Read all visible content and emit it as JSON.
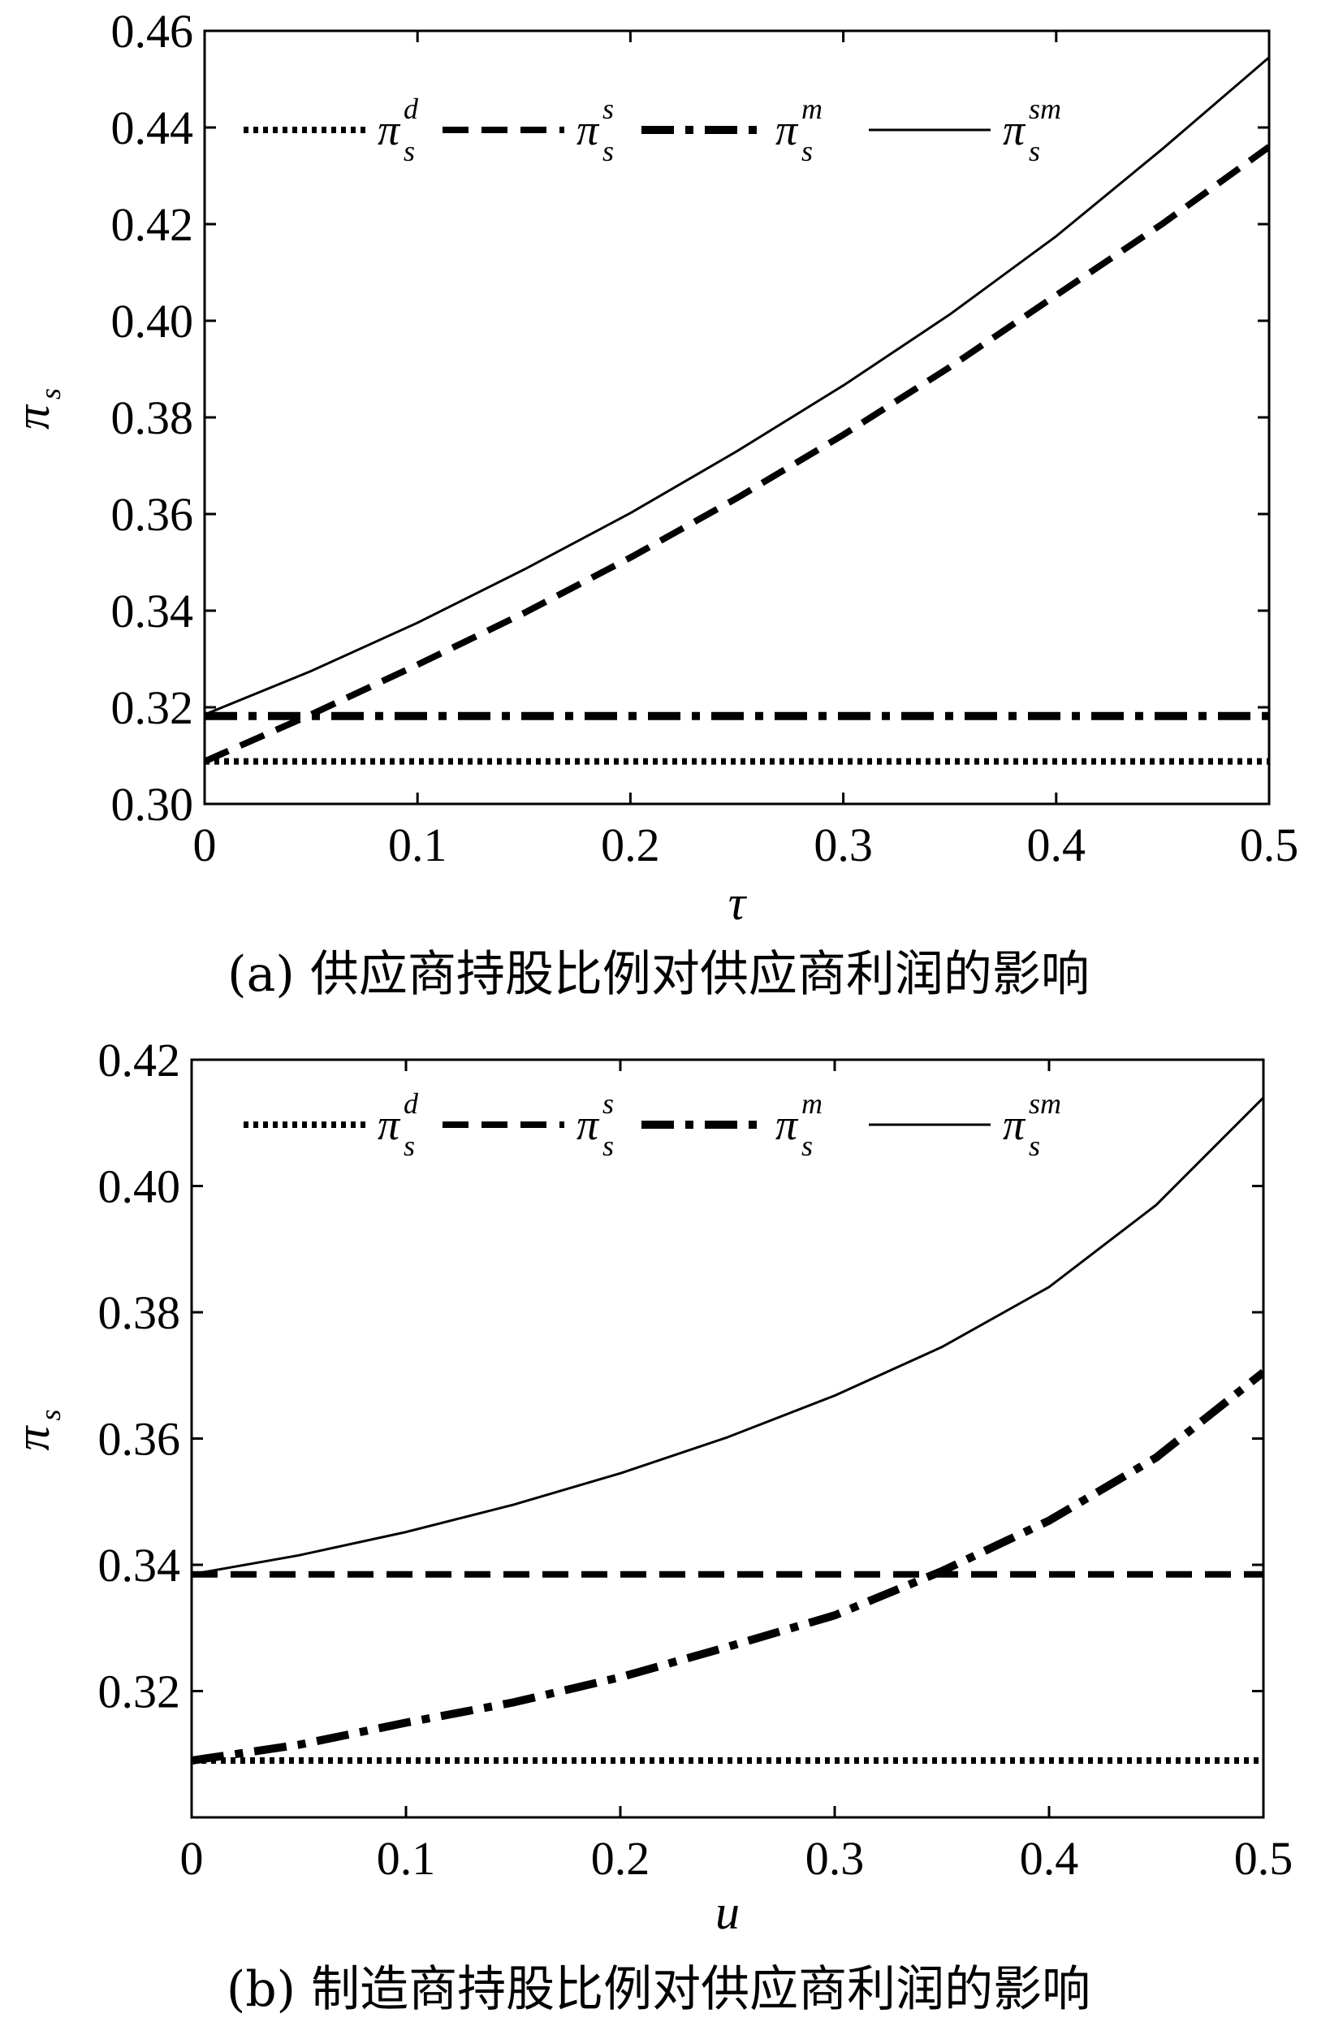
{
  "chart_data": [
    {
      "type": "line",
      "caption": "(a) 供应商持股比例对供应商利润的影响",
      "xlabel": "τ",
      "ylabel": "π",
      "ylabel_sub": "s",
      "xlim": [
        0,
        0.5
      ],
      "ylim": [
        0.3,
        0.46
      ],
      "xticks": [
        "0",
        "0.1",
        "0.2",
        "0.3",
        "0.4",
        "0.5"
      ],
      "xtick_values": [
        0,
        0.1,
        0.2,
        0.3,
        0.4,
        0.5
      ],
      "yticks": [
        "0.30",
        "0.32",
        "0.34",
        "0.36",
        "0.38",
        "0.40",
        "0.42",
        "0.44",
        "0.46"
      ],
      "ytick_values": [
        0.3,
        0.32,
        0.34,
        0.36,
        0.38,
        0.4,
        0.42,
        0.44,
        0.46
      ],
      "legend_placement": "top",
      "series": [
        {
          "name": "π",
          "sup": "d",
          "sub": "s",
          "style": "dotted",
          "x": [
            0,
            0.05,
            0.1,
            0.15,
            0.2,
            0.25,
            0.3,
            0.35,
            0.4,
            0.45,
            0.5
          ],
          "y": [
            0.3088,
            0.3088,
            0.3088,
            0.3088,
            0.3088,
            0.3088,
            0.3088,
            0.3088,
            0.3088,
            0.3088,
            0.3088
          ]
        },
        {
          "name": "π",
          "sup": "s",
          "sub": "s",
          "style": "dashed",
          "x": [
            0,
            0.05,
            0.1,
            0.15,
            0.2,
            0.25,
            0.3,
            0.35,
            0.4,
            0.45,
            0.5
          ],
          "y": [
            0.3088,
            0.3185,
            0.3288,
            0.3395,
            0.351,
            0.3633,
            0.3764,
            0.3904,
            0.4053,
            0.4201,
            0.436
          ]
        },
        {
          "name": "π",
          "sup": "m",
          "sub": "s",
          "style": "dashdot",
          "x": [
            0,
            0.05,
            0.1,
            0.15,
            0.2,
            0.25,
            0.3,
            0.35,
            0.4,
            0.45,
            0.5
          ],
          "y": [
            0.3182,
            0.3182,
            0.3182,
            0.3182,
            0.3182,
            0.3182,
            0.3182,
            0.3182,
            0.3182,
            0.3182,
            0.3182
          ]
        },
        {
          "name": "π",
          "sup": "sm",
          "sub": "s",
          "style": "solid",
          "x": [
            0,
            0.05,
            0.1,
            0.15,
            0.2,
            0.25,
            0.3,
            0.35,
            0.4,
            0.45,
            0.5
          ],
          "y": [
            0.3185,
            0.3275,
            0.3375,
            0.3485,
            0.3602,
            0.373,
            0.3866,
            0.4013,
            0.4175,
            0.4356,
            0.4545
          ]
        }
      ]
    },
    {
      "type": "line",
      "caption": "(b) 制造商持股比例对供应商利润的影响",
      "xlabel": "u",
      "ylabel": "π",
      "ylabel_sub": "s",
      "xlim": [
        0,
        0.5
      ],
      "ylim": [
        0.3,
        0.42
      ],
      "xticks": [
        "0",
        "0.1",
        "0.2",
        "0.3",
        "0.4",
        "0.5"
      ],
      "xtick_values": [
        0,
        0.1,
        0.2,
        0.3,
        0.4,
        0.5
      ],
      "yticks": [
        "0.32",
        "0.34",
        "0.36",
        "0.38",
        "0.40",
        "0.42"
      ],
      "ytick_values": [
        0.32,
        0.34,
        0.36,
        0.38,
        0.4,
        0.42
      ],
      "legend_placement": "top",
      "series": [
        {
          "name": "π",
          "sup": "d",
          "sub": "s",
          "style": "dotted",
          "x": [
            0,
            0.05,
            0.1,
            0.15,
            0.2,
            0.25,
            0.3,
            0.35,
            0.4,
            0.45,
            0.5
          ],
          "y": [
            0.309,
            0.309,
            0.309,
            0.309,
            0.309,
            0.309,
            0.309,
            0.309,
            0.309,
            0.309,
            0.309
          ]
        },
        {
          "name": "π",
          "sup": "s",
          "sub": "s",
          "style": "dashed",
          "x": [
            0,
            0.05,
            0.1,
            0.15,
            0.2,
            0.25,
            0.3,
            0.35,
            0.4,
            0.45,
            0.5
          ],
          "y": [
            0.3385,
            0.3385,
            0.3385,
            0.3385,
            0.3385,
            0.3385,
            0.3385,
            0.3385,
            0.3385,
            0.3385,
            0.3385
          ]
        },
        {
          "name": "π",
          "sup": "m",
          "sub": "s",
          "style": "dashdot",
          "x": [
            0,
            0.05,
            0.1,
            0.15,
            0.2,
            0.25,
            0.3,
            0.35,
            0.4,
            0.45,
            0.5
          ],
          "y": [
            0.309,
            0.3115,
            0.315,
            0.3182,
            0.3222,
            0.327,
            0.332,
            0.339,
            0.347,
            0.357,
            0.3705
          ]
        },
        {
          "name": "π",
          "sup": "sm",
          "sub": "s",
          "style": "solid",
          "x": [
            0,
            0.05,
            0.1,
            0.15,
            0.2,
            0.25,
            0.3,
            0.35,
            0.4,
            0.45,
            0.5
          ],
          "y": [
            0.3385,
            0.3415,
            0.3452,
            0.3495,
            0.3545,
            0.3602,
            0.3668,
            0.3745,
            0.384,
            0.397,
            0.414
          ]
        }
      ]
    }
  ]
}
